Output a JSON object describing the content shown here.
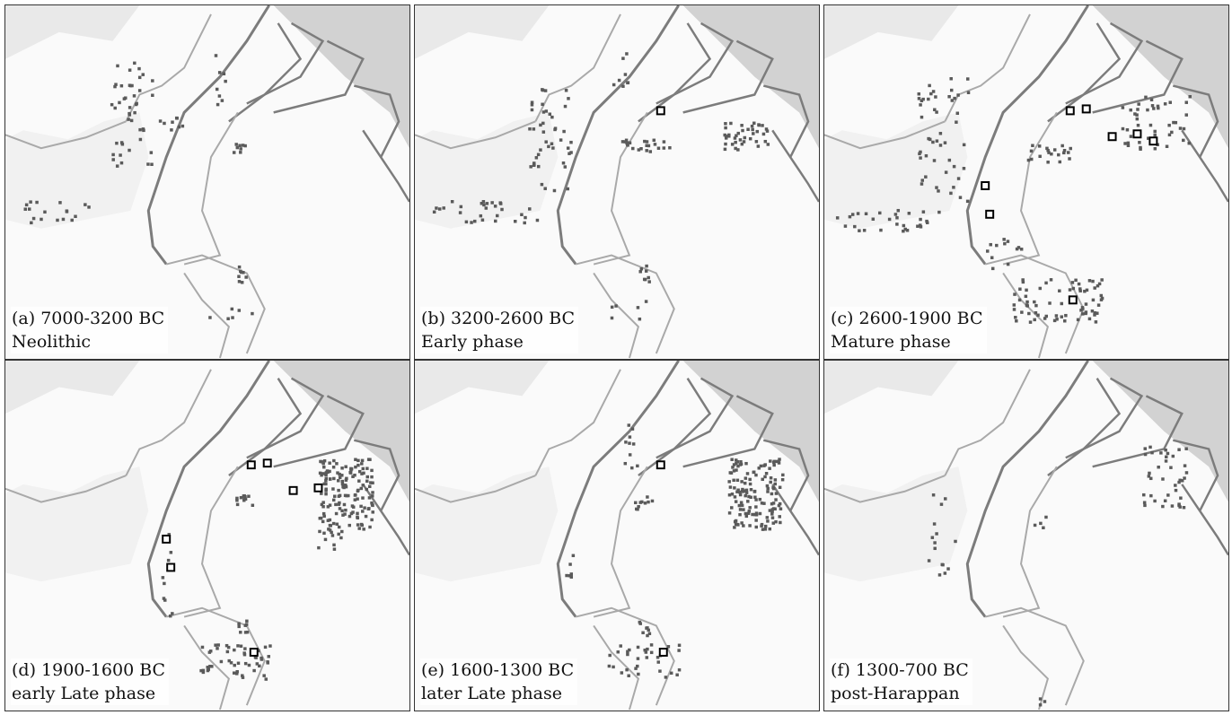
{
  "colors": {
    "terrain": "#fafafa",
    "relief": "#d8d8d8",
    "mountains": "#c4c4c4",
    "river": "#7c7c7c",
    "border": "#a9a9a9",
    "site": "#5a5a5a",
    "city_marker": "#000000"
  },
  "panels": [
    {
      "id": "a",
      "period": "(a) 7000-3200 BC",
      "phase": "Neolithic"
    },
    {
      "id": "b",
      "period": "(b) 3200-2600 BC",
      "phase": "Early phase"
    },
    {
      "id": "c",
      "period": "(c) 2600-1900 BC",
      "phase": "Mature phase"
    },
    {
      "id": "d",
      "period": "(d) 1900-1600 BC",
      "phase": "early Late phase"
    },
    {
      "id": "e",
      "period": "(e) 1600-1300 BC",
      "phase": "later Late phase"
    },
    {
      "id": "f",
      "period": "(f) 1300-700 BC",
      "phase": "post-Harappan"
    }
  ]
}
